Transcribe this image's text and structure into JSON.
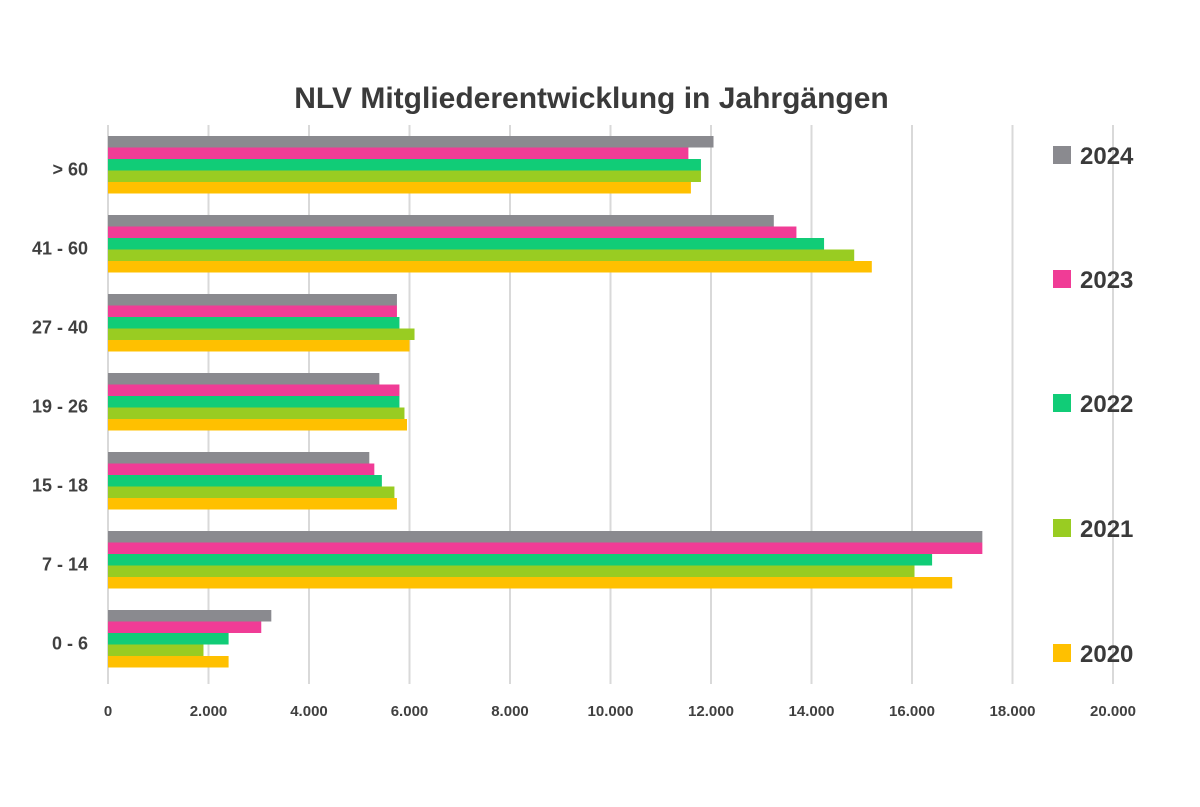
{
  "chart_data": {
    "type": "bar",
    "orientation": "horizontal",
    "title": "NLV Mitgliederentwicklung in Jahrgängen",
    "categories": [
      "0 - 6",
      "7 - 14",
      "15 - 18",
      "19 - 26",
      "27 - 40",
      "41 - 60",
      "> 60"
    ],
    "series": [
      {
        "name": "2024",
        "color": "#8a8a8f",
        "values": [
          3250,
          17400,
          5200,
          5400,
          5750,
          13250,
          12050
        ]
      },
      {
        "name": "2023",
        "color": "#f03c96",
        "values": [
          3050,
          17400,
          5300,
          5800,
          5750,
          13700,
          11550
        ]
      },
      {
        "name": "2022",
        "color": "#11cc77",
        "values": [
          2400,
          16400,
          5450,
          5800,
          5800,
          14250,
          11800
        ]
      },
      {
        "name": "2021",
        "color": "#99cc22",
        "values": [
          1900,
          16050,
          5700,
          5900,
          6100,
          14850,
          11800
        ]
      },
      {
        "name": "2020",
        "color": "#ffc000",
        "values": [
          2400,
          16800,
          5750,
          5950,
          6000,
          15200,
          11600
        ]
      }
    ],
    "xlim": [
      0,
      20000
    ],
    "xticks": [
      0,
      2000,
      4000,
      6000,
      8000,
      10000,
      12000,
      14000,
      16000,
      18000,
      20000
    ],
    "xtick_labels": [
      "0",
      "2.000",
      "4.000",
      "6.000",
      "8.000",
      "10.000",
      "12.000",
      "14.000",
      "16.000",
      "18.000",
      "20.000"
    ],
    "grid": true,
    "legend_position": "right",
    "legend_order": [
      "2024",
      "2023",
      "2022",
      "2021",
      "2020"
    ]
  }
}
